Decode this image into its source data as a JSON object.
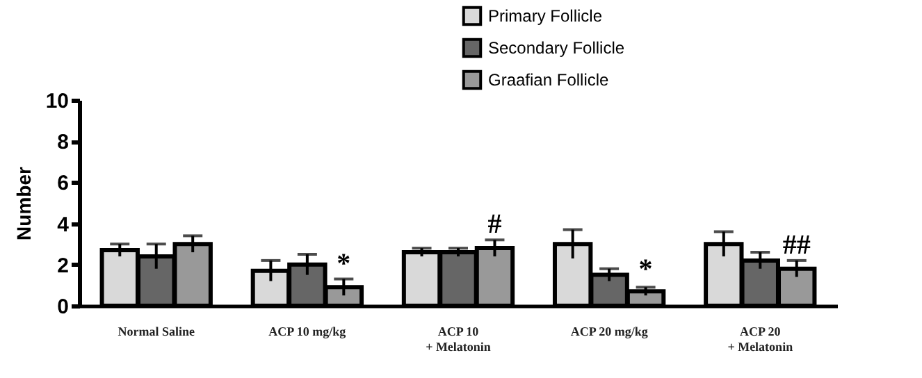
{
  "chart_data": {
    "type": "bar",
    "ylabel": "Number",
    "categories": [
      "Normal Saline",
      "ACP 10 mg/kg",
      "ACP 10\n+ Melatonin",
      "ACP 20 mg/kg",
      "ACP 20\n+ Melatonin"
    ],
    "series": [
      {
        "name": "Primary Follicle",
        "color": "#d9d9d9",
        "values": [
          2.7,
          1.7,
          2.6,
          3.0,
          3.0
        ],
        "errors": [
          0.3,
          0.5,
          0.2,
          0.7,
          0.6
        ]
      },
      {
        "name": "Secondary Follicle",
        "color": "#666666",
        "values": [
          2.4,
          2.0,
          2.6,
          1.5,
          2.2
        ],
        "errors": [
          0.6,
          0.5,
          0.2,
          0.3,
          0.4
        ]
      },
      {
        "name": "Graafian Follicle",
        "color": "#999999",
        "values": [
          3.0,
          0.9,
          2.8,
          0.7,
          1.8
        ],
        "errors": [
          0.4,
          0.4,
          0.4,
          0.2,
          0.4
        ]
      }
    ],
    "annotations": [
      {
        "text": "*",
        "x": "ACP 10 mg/kg",
        "y": 1.3
      },
      {
        "text": "#",
        "x": "ACP 10\n+ Melatonin",
        "y": 3.2
      },
      {
        "text": "*",
        "x": "ACP 20 mg/kg",
        "y": 1.0
      },
      {
        "text": "##",
        "x": "ACP 20\n+ Melatonin",
        "y": 2.2
      }
    ],
    "ylim": [
      0,
      10
    ],
    "yticks": [
      0,
      2,
      4,
      6,
      8,
      10
    ],
    "grid": false,
    "legend": "top right"
  }
}
